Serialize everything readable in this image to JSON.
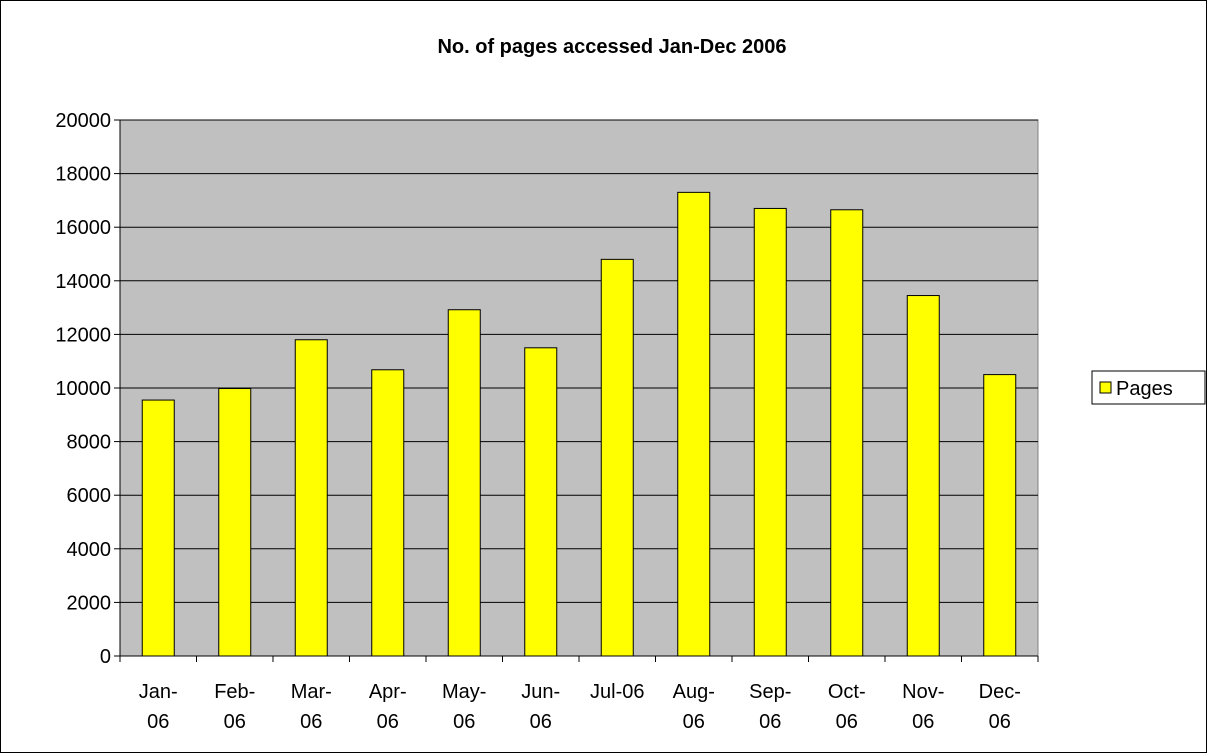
{
  "chart_data": {
    "type": "bar",
    "title": "No. of pages accessed Jan-Dec 2006",
    "xlabel": "",
    "ylabel": "",
    "categories": [
      [
        "Jan-",
        "06"
      ],
      [
        "Feb-",
        "06"
      ],
      [
        "Mar-",
        "06"
      ],
      [
        "Apr-",
        "06"
      ],
      [
        "May-",
        "06"
      ],
      [
        "Jun-",
        "06"
      ],
      [
        "Jul-06"
      ],
      [
        "Aug-",
        "06"
      ],
      [
        "Sep-",
        "06"
      ],
      [
        "Oct-",
        "06"
      ],
      [
        "Nov-",
        "06"
      ],
      [
        "Dec-",
        "06"
      ]
    ],
    "series": [
      {
        "name": "Pages",
        "values": [
          9550,
          9980,
          11800,
          10680,
          12920,
          11500,
          14800,
          17300,
          16700,
          16650,
          13450,
          10500
        ]
      }
    ],
    "ylim": [
      0,
      20000
    ],
    "yticks": [
      "0",
      "2000",
      "4000",
      "6000",
      "8000",
      "10000",
      "12000",
      "14000",
      "16000",
      "18000",
      "20000"
    ],
    "grid": true,
    "legend_position": "right",
    "colors": {
      "bar_fill": "#ffff00",
      "bar_stroke": "#000000",
      "plot_background": "#c0c0c0",
      "gridline": "#000000"
    }
  }
}
